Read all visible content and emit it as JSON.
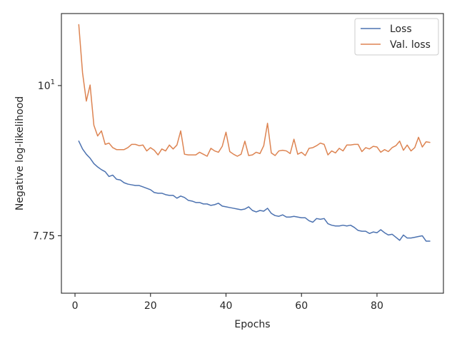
{
  "chart_data": {
    "type": "line",
    "title": "",
    "xlabel": "Epochs",
    "ylabel": "Negative log-likelihood",
    "xlim": [
      -3.6,
      97.6
    ],
    "ylim": [
      7.03,
      11.3
    ],
    "y_scale": "log",
    "grid": false,
    "legend_position": "top-right",
    "x_ticks": [
      0,
      20,
      40,
      60,
      80
    ],
    "x_tick_labels": [
      "0",
      "20",
      "40",
      "60",
      "80"
    ],
    "y_ticks": [
      7.75,
      10
    ],
    "y_tick_labels": [
      "7.75",
      "10¹"
    ],
    "x": [
      1,
      2,
      3,
      4,
      5,
      6,
      7,
      8,
      9,
      10,
      11,
      12,
      13,
      14,
      15,
      16,
      17,
      18,
      19,
      20,
      21,
      22,
      23,
      24,
      25,
      26,
      27,
      28,
      29,
      30,
      31,
      32,
      33,
      34,
      35,
      36,
      37,
      38,
      39,
      40,
      41,
      42,
      43,
      44,
      45,
      46,
      47,
      48,
      49,
      50,
      51,
      52,
      53,
      54,
      55,
      56,
      57,
      58,
      59,
      60,
      61,
      62,
      63,
      64,
      65,
      66,
      67,
      68,
      69,
      70,
      71,
      72,
      73,
      74,
      75,
      76,
      77,
      78,
      79,
      80,
      81,
      82,
      83,
      84,
      85,
      86,
      87,
      88,
      89,
      90,
      91,
      92,
      93,
      94
    ],
    "series": [
      {
        "name": "Loss",
        "color": "#4c72b0",
        "values": [
          9.1,
          8.98,
          8.9,
          8.84,
          8.76,
          8.71,
          8.67,
          8.64,
          8.57,
          8.59,
          8.53,
          8.52,
          8.48,
          8.46,
          8.45,
          8.44,
          8.44,
          8.42,
          8.4,
          8.38,
          8.34,
          8.33,
          8.33,
          8.31,
          8.3,
          8.3,
          8.26,
          8.29,
          8.27,
          8.23,
          8.22,
          8.2,
          8.2,
          8.18,
          8.18,
          8.16,
          8.17,
          8.19,
          8.15,
          8.14,
          8.13,
          8.12,
          8.11,
          8.1,
          8.11,
          8.14,
          8.09,
          8.07,
          8.09,
          8.08,
          8.12,
          8.05,
          8.02,
          8.01,
          8.03,
          8.0,
          8.0,
          8.01,
          8.0,
          7.99,
          7.99,
          7.95,
          7.93,
          7.98,
          7.97,
          7.98,
          7.91,
          7.89,
          7.88,
          7.88,
          7.89,
          7.88,
          7.89,
          7.86,
          7.82,
          7.81,
          7.81,
          7.78,
          7.8,
          7.79,
          7.83,
          7.79,
          7.76,
          7.77,
          7.73,
          7.69,
          7.76,
          7.72,
          7.72,
          7.73,
          7.74,
          7.75,
          7.68,
          7.68
        ]
      },
      {
        "name": "Val. loss",
        "color": "#dd8452",
        "values": [
          11.09,
          10.22,
          9.74,
          10.01,
          9.35,
          9.18,
          9.26,
          9.05,
          9.07,
          9.0,
          8.97,
          8.97,
          8.97,
          9.0,
          9.05,
          9.05,
          9.03,
          9.04,
          8.95,
          9.0,
          8.96,
          8.89,
          8.98,
          8.95,
          9.04,
          8.98,
          9.04,
          9.26,
          8.9,
          8.89,
          8.89,
          8.89,
          8.93,
          8.9,
          8.87,
          8.99,
          8.95,
          8.93,
          9.02,
          9.24,
          8.94,
          8.9,
          8.87,
          8.9,
          9.1,
          8.88,
          8.89,
          8.93,
          8.91,
          9.03,
          9.38,
          8.92,
          8.88,
          8.95,
          8.96,
          8.95,
          8.91,
          9.13,
          8.9,
          8.93,
          8.88,
          8.99,
          9.0,
          9.03,
          9.07,
          9.05,
          8.89,
          8.95,
          8.92,
          8.99,
          8.95,
          9.04,
          9.04,
          9.05,
          9.05,
          8.94,
          9.0,
          8.98,
          9.02,
          9.01,
          8.93,
          8.97,
          8.94,
          9.0,
          9.03,
          9.1,
          8.96,
          9.04,
          8.95,
          9.0,
          9.16,
          9.01,
          9.09,
          9.08
        ]
      }
    ]
  }
}
